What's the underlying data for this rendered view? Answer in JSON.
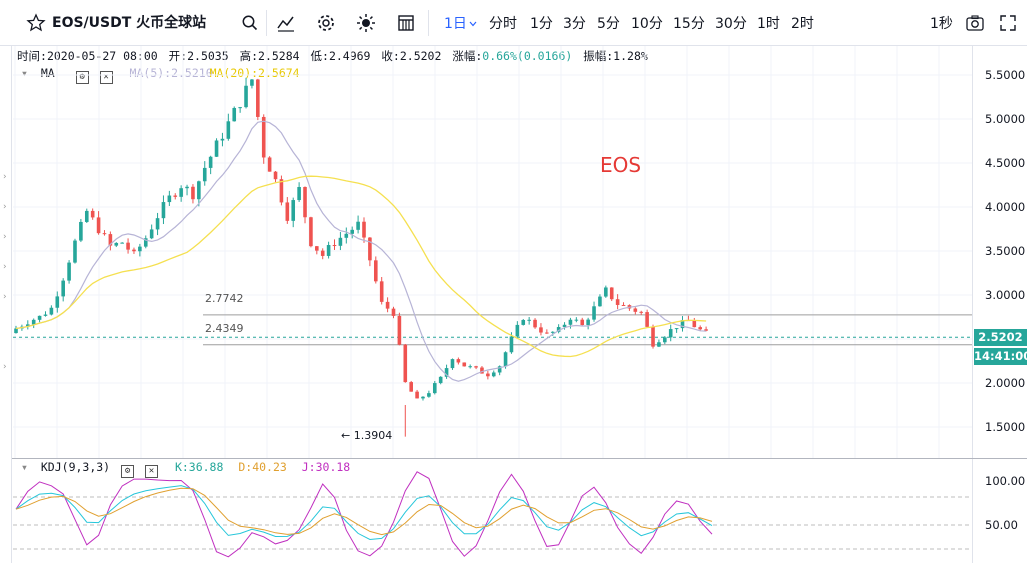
{
  "toolbar": {
    "symbol": "EOS/USDT 火币全球站",
    "timeframes": [
      "1日",
      "分时",
      "1分",
      "3分",
      "5分",
      "10分",
      "15分",
      "30分",
      "1时",
      "2时"
    ],
    "active_timeframe": "1日",
    "right_label": "1秒"
  },
  "ohlc": {
    "time_label": "时间:",
    "time": "2020-05-27 08:00",
    "open_label": "开:",
    "open": "2.5035",
    "high_label": "高:",
    "high": "2.5284",
    "low_label": "低:",
    "low": "2.4969",
    "close_label": "收:",
    "close": "2.5202",
    "change_label": "涨幅:",
    "change": "0.66%(0.0166)",
    "amplitude_label": "振幅:",
    "amplitude": "1.28%"
  },
  "ma_legend": {
    "name": "MA",
    "ma5": "MA(5):2.5210",
    "ma20": "MA(20):2.5674"
  },
  "kdj_legend": {
    "name": "KDJ(9,3,3)",
    "k": "K:36.88",
    "d": "D:40.23",
    "j": "J:30.18"
  },
  "annotations": {
    "watermark": "EOS",
    "level_high": "2.7742",
    "level_low": "2.4349",
    "low_marker": "← 1.3904",
    "last_price": "2.5202",
    "countdown": "14:41:00"
  },
  "colors": {
    "up": "#26a69a",
    "down": "#ef5350",
    "ma5": "#b7b4d6",
    "ma20": "#f5e050",
    "k": "#26c6da",
    "d": "#e0a030",
    "j": "#c030c0",
    "accent": "#2962ff",
    "last_price_bg": "#26a69a"
  },
  "chart_data": {
    "type": "candlestick",
    "price_axis": {
      "ticks": [
        "5.5000",
        "5.0000",
        "4.5000",
        "4.0000",
        "3.5000",
        "3.0000",
        "2.5000",
        "2.0000",
        "1.5000"
      ],
      "range": [
        1.2,
        5.6
      ]
    },
    "kdj_axis": {
      "ticks": [
        "100.00",
        "50.00"
      ],
      "range": [
        0,
        110
      ]
    },
    "price_path": [
      2.62,
      2.7,
      2.75,
      2.85,
      3.2,
      3.6,
      3.95,
      3.75,
      3.55,
      3.6,
      3.45,
      3.65,
      3.9,
      4.1,
      4.25,
      4.15,
      4.45,
      4.7,
      4.95,
      5.2,
      5.45,
      4.6,
      4.3,
      3.9,
      4.2,
      3.6,
      3.45,
      3.6,
      3.7,
      3.8,
      3.4,
      2.9,
      2.8,
      2.0,
      1.8,
      1.9,
      2.05,
      2.3,
      2.2,
      2.15,
      2.1,
      2.2,
      2.5,
      2.75,
      2.65,
      2.55,
      2.6,
      2.75,
      2.65,
      2.85,
      3.05,
      2.9,
      2.85,
      2.8,
      2.45,
      2.55,
      2.65,
      2.7,
      2.6,
      2.52
    ],
    "kdj_path": [
      60,
      80,
      88,
      84,
      78,
      52,
      28,
      40,
      68,
      82,
      88,
      90,
      92,
      94,
      96,
      86,
      56,
      24,
      10,
      26,
      34,
      24,
      16,
      20,
      30,
      52,
      76,
      60,
      30,
      14,
      10,
      18,
      40,
      70,
      88,
      82,
      54,
      26,
      14,
      24,
      46,
      72,
      88,
      70,
      44,
      22,
      26,
      48,
      70,
      76,
      60,
      38,
      24,
      14,
      30,
      50,
      60,
      56,
      40,
      30
    ]
  }
}
